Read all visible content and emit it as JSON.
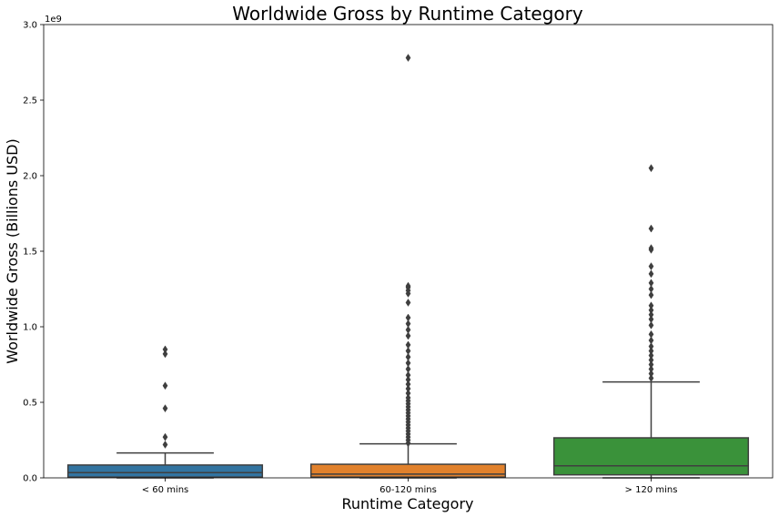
{
  "chart_data": {
    "type": "box",
    "title": "Worldwide Gross by Runtime Category",
    "xlabel": "Runtime Category",
    "ylabel": "Worldwide Gross (Billions USD)",
    "y_offset_label": "1e9",
    "ylim": [
      0,
      3.0
    ],
    "yticks": [
      "0.0",
      "0.5",
      "1.0",
      "1.5",
      "2.0",
      "2.5",
      "3.0"
    ],
    "categories": [
      "< 60 mins",
      "60-120 mins",
      "> 120 mins"
    ],
    "colors": [
      "#3274a1",
      "#e1812c",
      "#3a923a"
    ],
    "grid": false,
    "boxes": [
      {
        "category": "< 60 mins",
        "whisker_low": 0.0,
        "q1": 0.005,
        "median": 0.035,
        "q3": 0.085,
        "whisker_high": 0.165,
        "outliers": [
          0.22,
          0.27,
          0.46,
          0.61,
          0.82,
          0.85
        ]
      },
      {
        "category": "60-120 mins",
        "whisker_low": 0.0,
        "q1": 0.005,
        "median": 0.025,
        "q3": 0.09,
        "whisker_high": 0.225,
        "outliers": [
          0.23,
          0.25,
          0.27,
          0.29,
          0.31,
          0.33,
          0.35,
          0.37,
          0.39,
          0.41,
          0.43,
          0.45,
          0.47,
          0.49,
          0.51,
          0.53,
          0.56,
          0.59,
          0.62,
          0.65,
          0.68,
          0.72,
          0.76,
          0.8,
          0.84,
          0.88,
          0.94,
          0.98,
          1.02,
          1.06,
          1.16,
          1.22,
          1.24,
          1.26,
          1.27,
          2.78
        ]
      },
      {
        "category": "> 120 mins",
        "whisker_low": 0.0,
        "q1": 0.02,
        "median": 0.08,
        "q3": 0.265,
        "whisker_high": 0.635,
        "outliers": [
          0.66,
          0.69,
          0.72,
          0.75,
          0.78,
          0.81,
          0.84,
          0.87,
          0.91,
          0.95,
          1.01,
          1.05,
          1.08,
          1.11,
          1.14,
          1.21,
          1.25,
          1.29,
          1.35,
          1.4,
          1.51,
          1.52,
          1.65,
          2.05
        ]
      }
    ]
  }
}
